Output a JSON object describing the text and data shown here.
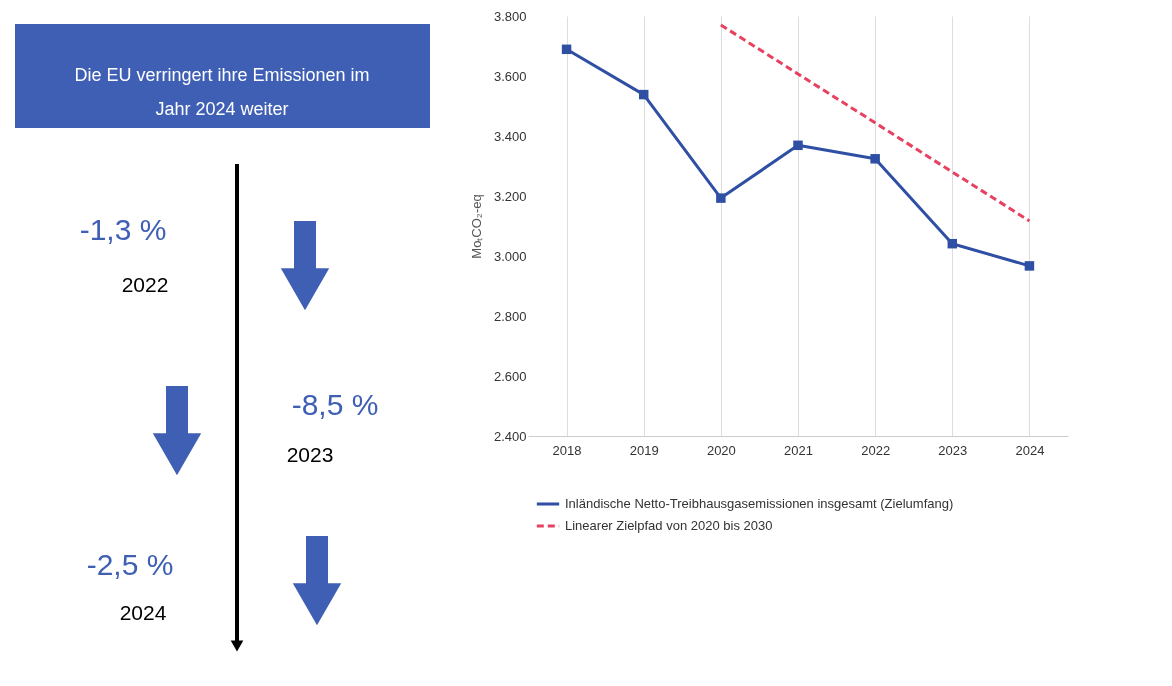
{
  "chart_data": [
    {
      "type": "other",
      "title": "Die EU verringert ihre Emissionen im Jahr 2024 weiter",
      "annotations": [
        "-1,3 %",
        "2022",
        "-8,5 %",
        "2023",
        "-2,5 %",
        "2024"
      ]
    },
    {
      "type": "line",
      "ylabel": "MoₜCO₂-eq",
      "categories": [
        "2018",
        "2019",
        "2020",
        "2021",
        "2022",
        "2023",
        "2024"
      ],
      "series": [
        {
          "name": "Inländische Netto-Treibhausgasemissionen insgesamt (Zielumfang)",
          "color": "#2e4fa3",
          "marker": "square",
          "line_style": "solid",
          "values": [
            3689,
            3538,
            3193,
            3369,
            3324,
            3041,
            2967
          ]
        },
        {
          "name": "Linearer Zielpfad von 2020 bis 2030",
          "color": "#e8415f",
          "marker": "none",
          "line_style": "dashed",
          "values": [
            null,
            null,
            3770,
            3607,
            3444,
            3280,
            3117
          ]
        }
      ],
      "ylim": [
        2400,
        3800
      ],
      "yticks": [
        {
          "value": 2400,
          "label": "2.400"
        },
        {
          "value": 2600,
          "label": "2.600"
        },
        {
          "value": 2800,
          "label": "2.800"
        },
        {
          "value": 3000,
          "label": "3.000"
        },
        {
          "value": 3200,
          "label": "3.200"
        },
        {
          "value": 3400,
          "label": "3.400"
        },
        {
          "value": 3600,
          "label": "3.600"
        },
        {
          "value": 3800,
          "label": "3.800"
        }
      ],
      "grid": "x",
      "legend": "bottom"
    }
  ]
}
